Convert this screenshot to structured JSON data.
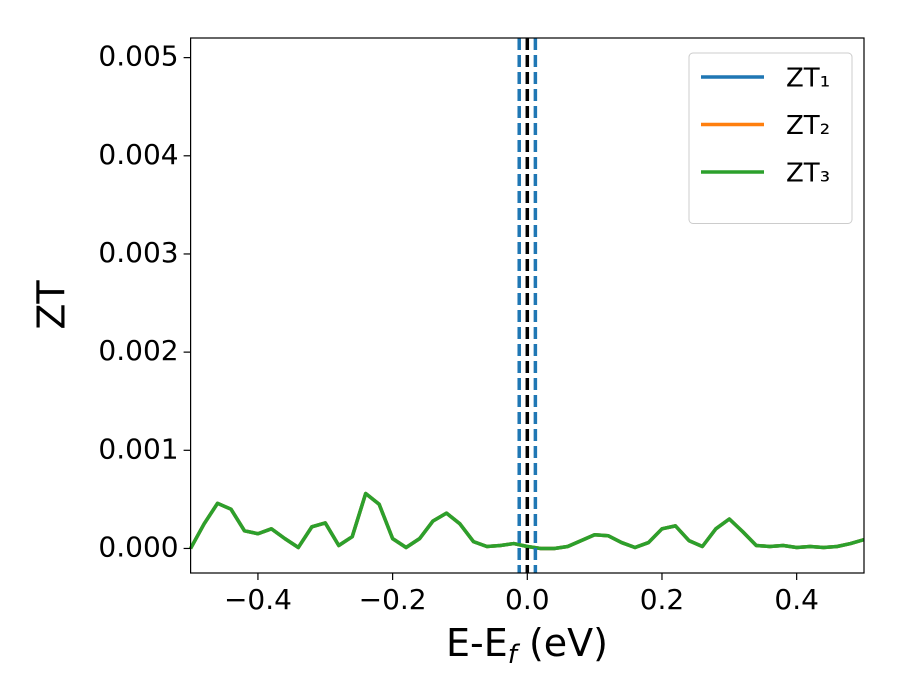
{
  "chart_data": {
    "type": "line",
    "ylabel": "ZT",
    "xlabel": [
      "E-E",
      "f",
      " (eV)"
    ],
    "x": [
      -0.5,
      -0.48,
      -0.46,
      -0.44,
      -0.42,
      -0.4,
      -0.38,
      -0.36,
      -0.34,
      -0.32,
      -0.3,
      -0.28,
      -0.26,
      -0.24,
      -0.22,
      -0.2,
      -0.18,
      -0.16,
      -0.14,
      -0.12,
      -0.1,
      -0.08,
      -0.06,
      -0.04,
      -0.02,
      0,
      0.02,
      0.04,
      0.06,
      0.08,
      0.1,
      0.12,
      0.14,
      0.16,
      0.18,
      0.2,
      0.22,
      0.24,
      0.26,
      0.28,
      0.3,
      0.32,
      0.34,
      0.36,
      0.38,
      0.4,
      0.42,
      0.44,
      0.46,
      0.48,
      0.5
    ],
    "series": [
      {
        "name": "ZT₁",
        "color": "#1f77b4",
        "values": [
          0,
          0.00025,
          0.00046,
          0.0004,
          0.00018,
          0.00015,
          0.0002,
          0.0001,
          1e-05,
          0.00022,
          0.00026,
          3e-05,
          0.00012,
          0.00056,
          0.00045,
          0.0001,
          1e-05,
          0.0001,
          0.00028,
          0.00036,
          0.00025,
          7e-05,
          2e-05,
          3e-05,
          5e-05,
          2e-05,
          0,
          0,
          2e-05,
          8e-05,
          0.00014,
          0.00013,
          6e-05,
          1e-05,
          6e-05,
          0.0002,
          0.00023,
          8e-05,
          2e-05,
          0.0002,
          0.0003,
          0.00017,
          3e-05,
          2e-05,
          3e-05,
          1e-05,
          2e-05,
          1e-05,
          2e-05,
          5e-05,
          9e-05
        ]
      },
      {
        "name": "ZT₂",
        "color": "#ff7f0e",
        "values": [
          0,
          0.00025,
          0.00046,
          0.0004,
          0.00018,
          0.00015,
          0.0002,
          0.0001,
          1e-05,
          0.00022,
          0.00026,
          3e-05,
          0.00012,
          0.00056,
          0.00045,
          0.0001,
          1e-05,
          0.0001,
          0.00028,
          0.00036,
          0.00025,
          7e-05,
          2e-05,
          3e-05,
          5e-05,
          2e-05,
          0,
          0,
          2e-05,
          8e-05,
          0.00014,
          0.00013,
          6e-05,
          1e-05,
          6e-05,
          0.0002,
          0.00023,
          8e-05,
          2e-05,
          0.0002,
          0.0003,
          0.00017,
          3e-05,
          2e-05,
          3e-05,
          1e-05,
          2e-05,
          1e-05,
          2e-05,
          5e-05,
          9e-05
        ]
      },
      {
        "name": "ZT₃",
        "color": "#2ca02c",
        "values": [
          0,
          0.00025,
          0.00046,
          0.0004,
          0.00018,
          0.00015,
          0.0002,
          0.0001,
          1e-05,
          0.00022,
          0.00026,
          3e-05,
          0.00012,
          0.00056,
          0.00045,
          0.0001,
          1e-05,
          0.0001,
          0.00028,
          0.00036,
          0.00025,
          7e-05,
          2e-05,
          3e-05,
          5e-05,
          2e-05,
          0,
          0,
          2e-05,
          8e-05,
          0.00014,
          0.00013,
          6e-05,
          1e-05,
          6e-05,
          0.0002,
          0.00023,
          8e-05,
          2e-05,
          0.0002,
          0.0003,
          0.00017,
          3e-05,
          2e-05,
          3e-05,
          1e-05,
          2e-05,
          1e-05,
          2e-05,
          5e-05,
          9e-05
        ]
      }
    ],
    "vlines": [
      {
        "x": -0.012,
        "color": "#1f77b4"
      },
      {
        "x": 0,
        "color": "#000000"
      },
      {
        "x": 0.012,
        "color": "#1f77b4"
      }
    ],
    "xlim": [
      -0.5,
      0.5
    ],
    "ylim": [
      -0.00025,
      0.0052
    ],
    "xticks": [
      {
        "value": -0.4,
        "label": "−0.4"
      },
      {
        "value": -0.2,
        "label": "−0.2"
      },
      {
        "value": 0,
        "label": "0.0"
      },
      {
        "value": 0.2,
        "label": "0.2"
      },
      {
        "value": 0.4,
        "label": "0.4"
      }
    ],
    "yticks": [
      {
        "value": 0,
        "label": "0.000"
      },
      {
        "value": 0.001,
        "label": "0.001"
      },
      {
        "value": 0.002,
        "label": "0.002"
      },
      {
        "value": 0.003,
        "label": "0.003"
      },
      {
        "value": 0.004,
        "label": "0.004"
      },
      {
        "value": 0.005,
        "label": "0.005"
      }
    ],
    "legend": "upper right",
    "grid": false
  }
}
